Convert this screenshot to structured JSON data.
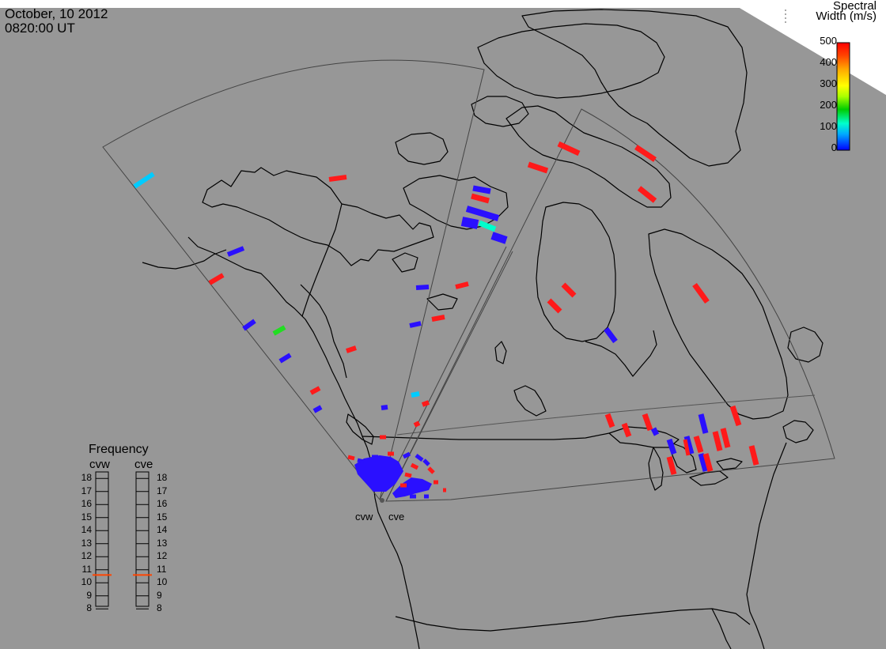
{
  "header": {
    "date": "October, 10 2012",
    "time": "0820:00 UT"
  },
  "colorbar": {
    "title_line1": "Spectral",
    "title_line2": "Width (m/s)",
    "ticks": [
      "500",
      "400",
      "300",
      "200",
      "100",
      "0"
    ],
    "colors": [
      "#0000ff",
      "#00aaff",
      "#00ffcc",
      "#00cc00",
      "#aaff00",
      "#ffff00",
      "#ffaa00",
      "#ff4400",
      "#ff0000"
    ]
  },
  "sites": {
    "west": "cvw",
    "east": "cve"
  },
  "frequency": {
    "title": "Frequency",
    "west_label": "cvw",
    "east_label": "cve",
    "ticks": [
      "18",
      "17",
      "16",
      "15",
      "14",
      "13",
      "12",
      "11",
      "10",
      "9",
      "8"
    ],
    "west_value_mhz": 10.6,
    "east_value_mhz": 10.6
  },
  "colors": {
    "background": "#979797",
    "coastline": "#000000",
    "fov": "#444444",
    "red": "#ff1a1a",
    "blue": "#2a10ff",
    "cyan": "#00ccff",
    "green": "#22dd22",
    "frequency_marker": "#ff4400"
  }
}
